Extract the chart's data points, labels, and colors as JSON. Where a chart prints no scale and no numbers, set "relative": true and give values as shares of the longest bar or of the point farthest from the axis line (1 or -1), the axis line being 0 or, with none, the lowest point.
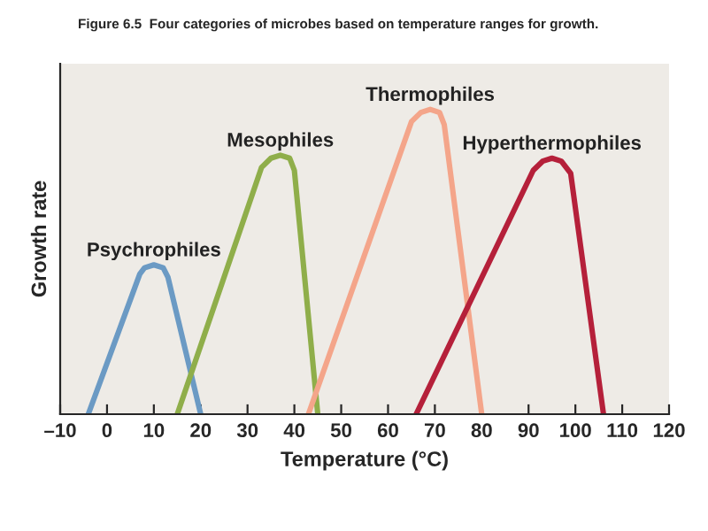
{
  "chart_data": {
    "type": "line",
    "title": "Figure 6.5  Four categories of microbes based on temperature ranges for growth.",
    "xlabel": "Temperature (°C)",
    "ylabel": "Growth rate",
    "relative": true,
    "grid": false,
    "legend": false,
    "marker": "none",
    "line_style": "solid",
    "xlim": [
      -10,
      120
    ],
    "xticks": [
      {
        "value": -10,
        "label": "–10"
      },
      0,
      10,
      20,
      30,
      40,
      50,
      60,
      70,
      80,
      90,
      100,
      110,
      120
    ],
    "series": [
      {
        "name": "Psychrophiles",
        "color": "#6b9ac4",
        "x": [
          -4,
          7,
          8,
          10,
          12,
          13,
          20
        ],
        "values": [
          0,
          0.46,
          0.48,
          0.49,
          0.48,
          0.45,
          0
        ]
      },
      {
        "name": "Mesophiles",
        "color": "#8fae4a",
        "x": [
          15,
          33,
          35,
          37,
          39,
          40,
          45
        ],
        "values": [
          0,
          0.81,
          0.84,
          0.85,
          0.84,
          0.8,
          0
        ]
      },
      {
        "name": "Thermophiles",
        "color": "#f4a58a",
        "x": [
          43,
          65,
          67,
          69,
          71,
          72,
          80
        ],
        "values": [
          0,
          0.96,
          0.99,
          1,
          0.99,
          0.95,
          0
        ]
      },
      {
        "name": "Hyperthermophiles",
        "color": "#b5203a",
        "x": [
          66,
          91,
          93,
          95,
          97,
          99,
          106
        ],
        "values": [
          0,
          0.8,
          0.83,
          0.84,
          0.83,
          0.79,
          0
        ]
      }
    ]
  }
}
